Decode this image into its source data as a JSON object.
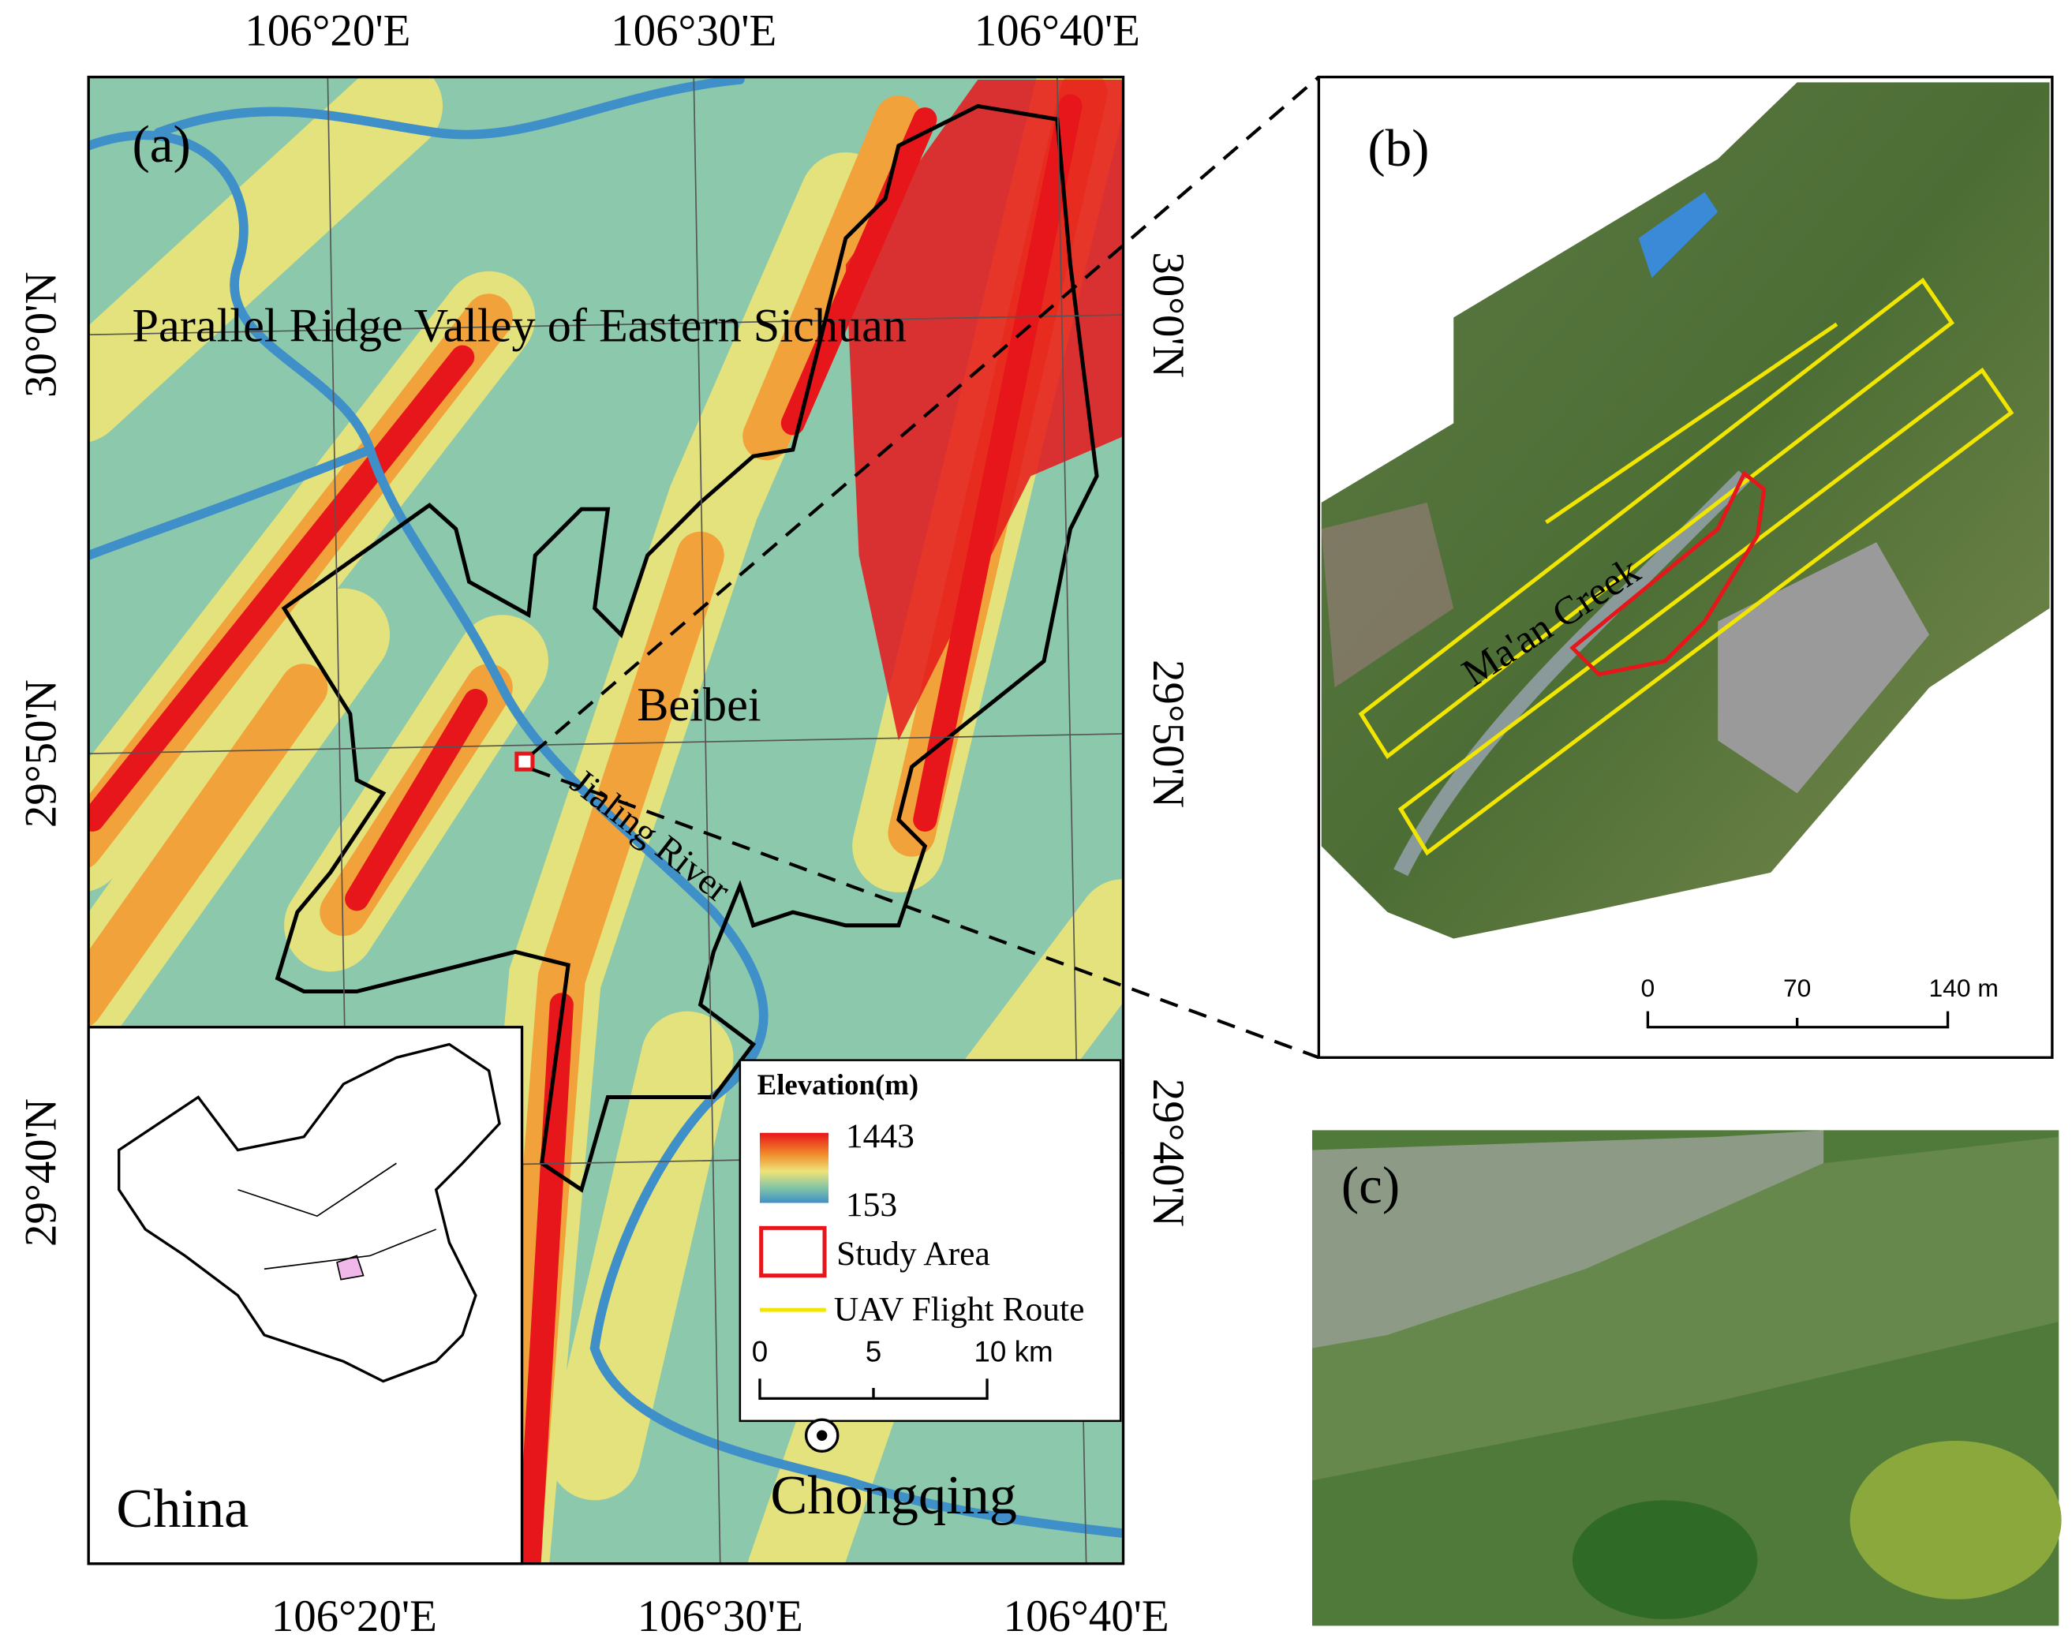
{
  "panel_a": {
    "label": "(a)",
    "lon_top": [
      "106°20'E",
      "106°30'E",
      "106°40'E"
    ],
    "lon_bottom": [
      "106°20'E",
      "106°30'E",
      "106°40'E"
    ],
    "lat_left": [
      "30°0'N",
      "29°50'N",
      "29°40'N"
    ],
    "lat_right": [
      "30°0'N",
      "29°50'N",
      "29°40'N"
    ],
    "region_label": "Parallel Ridge Valley of Eastern Sichuan",
    "district_label": "Beibei",
    "river_label": "Jialing River",
    "city_label": "Chongqing",
    "inset_label": "China",
    "legend": {
      "title": "Elevation(m)",
      "max": "1443",
      "min": "153",
      "study_area": "Study Area",
      "flight_route": "UAV Flight Route",
      "scale": [
        "0",
        "5",
        "10 km"
      ]
    }
  },
  "panel_b": {
    "label": "(b)",
    "creek_label": "Ma'an Creek",
    "scale": [
      "0",
      "70",
      "140 m"
    ]
  },
  "panel_c": {
    "label": "(c)"
  }
}
